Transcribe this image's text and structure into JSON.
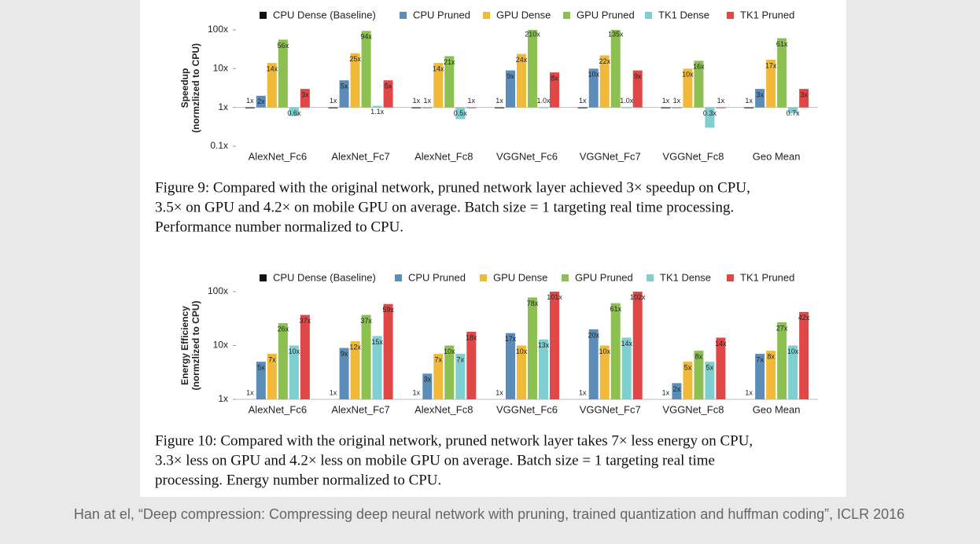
{
  "chart_data": [
    {
      "type": "bar",
      "log_scale": true,
      "ylabel": [
        "Speedup",
        "(normzlized to CPU)"
      ],
      "categories": [
        "AlexNet_Fc6",
        "AlexNet_Fc7",
        "AlexNet_Fc8",
        "VGGNet_Fc6",
        "VGGNet_Fc7",
        "VGGNet_Fc8",
        "Geo Mean"
      ],
      "series": [
        {
          "name": "CPU Dense (Baseline)",
          "color": "#111111",
          "values": [
            1,
            1,
            1,
            1,
            1,
            1,
            1
          ],
          "value_labels": [
            "1x",
            "1x",
            "1x",
            "1x",
            "1x",
            "1x",
            "1x"
          ]
        },
        {
          "name": "CPU Pruned",
          "color": "#5b8db8",
          "values": [
            2,
            5,
            1,
            9,
            10,
            1,
            3
          ],
          "value_labels": [
            "2x",
            "5x",
            "1x",
            "9x",
            "10x",
            "1x",
            "3x"
          ]
        },
        {
          "name": "GPU Dense",
          "color": "#f0b93a",
          "values": [
            14,
            25,
            14,
            24,
            22,
            10,
            17
          ],
          "value_labels": [
            "14x",
            "25x",
            "14x",
            "24x",
            "22x",
            "10x",
            "17x"
          ]
        },
        {
          "name": "GPU Pruned",
          "color": "#8cc152",
          "values": [
            56,
            94,
            21,
            210,
            135,
            16,
            61
          ],
          "value_labels": [
            "56x",
            "94x",
            "21x",
            "210x",
            "135x",
            "16x",
            "61x"
          ]
        },
        {
          "name": "TK1 Dense",
          "color": "#7ecfcf",
          "values": [
            0.6,
            1.1,
            0.5,
            1.0,
            1.0,
            0.3,
            0.7
          ],
          "value_labels": [
            "0.6x",
            "1.1x",
            "0.5x",
            "1.0x",
            "1.0x",
            "0.3x",
            "0.7x"
          ]
        },
        {
          "name": "TK1 Pruned",
          "color": "#e04848",
          "values": [
            3,
            5,
            1,
            8,
            9,
            1,
            3
          ],
          "value_labels": [
            "3x",
            "5x",
            "1x",
            "8x",
            "9x",
            "1x",
            "3x"
          ]
        }
      ],
      "ylim": [
        0.1,
        100
      ],
      "yticks": [
        {
          "value": 0.1,
          "label": "0.1x"
        },
        {
          "value": 1,
          "label": "1x"
        },
        {
          "value": 10,
          "label": "10x"
        },
        {
          "value": 100,
          "label": "100x"
        }
      ],
      "caption": [
        "Figure 9: Compared with the original network, pruned network layer achieved 3× speedup on CPU,",
        "3.5× on GPU and 4.2× on mobile GPU on average. Batch size = 1 targeting real time processing.",
        "Performance number normalized to CPU."
      ]
    },
    {
      "type": "bar",
      "log_scale": true,
      "ylabel": [
        "Energy Efficiency",
        "(normzlized to CPU)"
      ],
      "categories": [
        "AlexNet_Fc6",
        "AlexNet_Fc7",
        "AlexNet_Fc8",
        "VGGNet_Fc6",
        "VGGNet_Fc7",
        "VGGNet_Fc8",
        "Geo Mean"
      ],
      "series": [
        {
          "name": "CPU Dense (Baseline)",
          "color": "#111111",
          "values": [
            1,
            1,
            1,
            1,
            1,
            1,
            1
          ],
          "value_labels": [
            "1x",
            "1x",
            "1x",
            "1x",
            "1x",
            "1x",
            "1x"
          ]
        },
        {
          "name": "CPU Pruned",
          "color": "#5b8db8",
          "values": [
            5,
            9,
            3,
            17,
            20,
            2,
            7
          ],
          "value_labels": [
            "5x",
            "9x",
            "3x",
            "17x",
            "20x",
            "2x",
            "7x"
          ]
        },
        {
          "name": "GPU Dense",
          "color": "#f0b93a",
          "values": [
            7,
            12,
            7,
            10,
            10,
            5,
            8
          ],
          "value_labels": [
            "7x",
            "12x",
            "7x",
            "10x",
            "10x",
            "5x",
            "8x"
          ]
        },
        {
          "name": "GPU Pruned",
          "color": "#8cc152",
          "values": [
            26,
            37,
            10,
            78,
            61,
            8,
            27
          ],
          "value_labels": [
            "26x",
            "37x",
            "10x",
            "78x",
            "61x",
            "8x",
            "27x"
          ]
        },
        {
          "name": "TK1 Dense",
          "color": "#7ecfcf",
          "values": [
            10,
            15,
            7,
            13,
            14,
            5,
            10
          ],
          "value_labels": [
            "10x",
            "15x",
            "7x",
            "13x",
            "14x",
            "5x",
            "10x"
          ]
        },
        {
          "name": "TK1 Pruned",
          "color": "#e04848",
          "values": [
            37,
            59,
            18,
            101,
            102,
            14,
            42
          ],
          "value_labels": [
            "37x",
            "59x",
            "18x",
            "101x",
            "102x",
            "14x",
            "42x"
          ]
        }
      ],
      "ylim": [
        1,
        100
      ],
      "yticks": [
        {
          "value": 1,
          "label": "1x"
        },
        {
          "value": 10,
          "label": "10x"
        },
        {
          "value": 100,
          "label": "100x"
        }
      ],
      "caption": [
        "Figure 10: Compared with the original network, pruned network layer takes 7× less energy on CPU,",
        "3.3× less on GPU and 4.2× less on mobile GPU on average.  Batch size = 1 targeting real time",
        "processing. Energy number normalized to CPU."
      ]
    }
  ],
  "citation": "Han at el, “Deep compression: Compressing deep neural network with pruning, trained quantization and huffman coding”, ICLR 2016"
}
